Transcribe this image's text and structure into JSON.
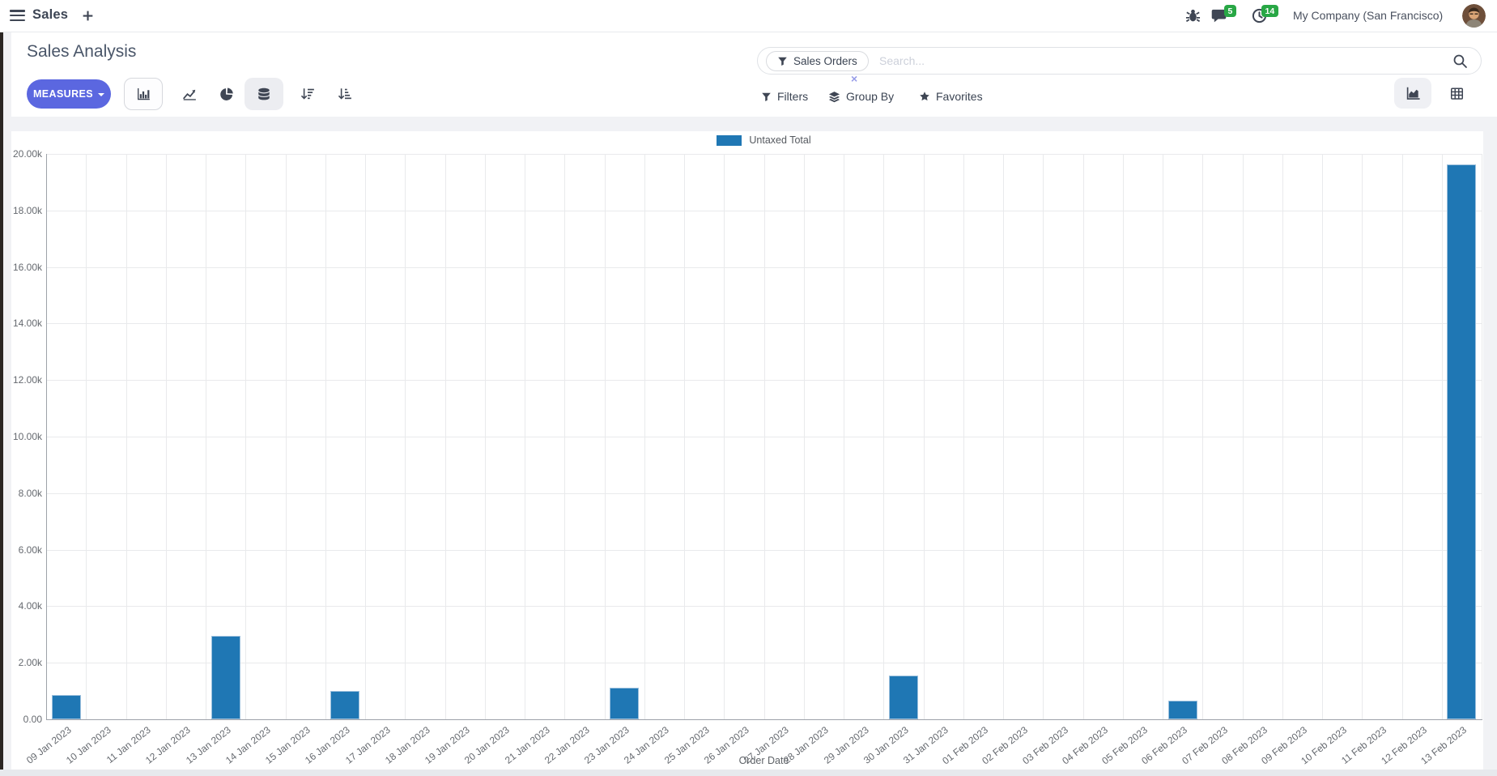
{
  "navbar": {
    "brand": "Sales",
    "messages_badge": "5",
    "activities_badge": "14",
    "company": "My Company (San Francisco)"
  },
  "control_panel": {
    "title": "Sales Analysis",
    "measures_label": "MEASURES",
    "search": {
      "facet": "Sales Orders",
      "placeholder": "Search..."
    },
    "filters_label": "Filters",
    "group_by_label": "Group By",
    "favorites_label": "Favorites"
  },
  "icons": [
    "menu-icon",
    "plus-icon",
    "bug-icon",
    "messages-icon",
    "activities-clock-icon",
    "avatar",
    "bar-chart-icon",
    "line-chart-icon",
    "pie-chart-icon",
    "stacked-icon",
    "sort-descending-icon",
    "sort-ascending-icon",
    "filter-funnel-icon",
    "layers-icon",
    "star-icon",
    "search-icon",
    "remove-facet-x-icon",
    "graph-view-icon",
    "pivot-view-icon"
  ],
  "colors": {
    "accent": "#5b67e0",
    "bar": "#1f77b4",
    "badge": "#28a745",
    "grid": "#e9eaec",
    "axis": "#9da2a9"
  },
  "chart_data": {
    "type": "bar",
    "title": "",
    "xlabel": "Order Date",
    "ylabel": "",
    "ylim": [
      0,
      20000
    ],
    "ytick_step": 2000,
    "ytick_labels": [
      "0.00",
      "2.00k",
      "4.00k",
      "6.00k",
      "8.00k",
      "10.00k",
      "12.00k",
      "14.00k",
      "16.00k",
      "18.00k",
      "20.00k"
    ],
    "grid": true,
    "legend_position": "top",
    "categories": [
      "09 Jan 2023",
      "10 Jan 2023",
      "11 Jan 2023",
      "12 Jan 2023",
      "13 Jan 2023",
      "14 Jan 2023",
      "15 Jan 2023",
      "16 Jan 2023",
      "17 Jan 2023",
      "18 Jan 2023",
      "19 Jan 2023",
      "20 Jan 2023",
      "21 Jan 2023",
      "22 Jan 2023",
      "23 Jan 2023",
      "24 Jan 2023",
      "25 Jan 2023",
      "26 Jan 2023",
      "27 Jan 2023",
      "28 Jan 2023",
      "29 Jan 2023",
      "30 Jan 2023",
      "31 Jan 2023",
      "01 Feb 2023",
      "02 Feb 2023",
      "03 Feb 2023",
      "04 Feb 2023",
      "05 Feb 2023",
      "06 Feb 2023",
      "07 Feb 2023",
      "08 Feb 2023",
      "09 Feb 2023",
      "10 Feb 2023",
      "11 Feb 2023",
      "12 Feb 2023",
      "13 Feb 2023"
    ],
    "series": [
      {
        "name": "Untaxed Total",
        "color": "#1f77b4",
        "values": [
          850,
          0,
          0,
          0,
          2950,
          0,
          0,
          990,
          0,
          0,
          0,
          0,
          0,
          0,
          1130,
          0,
          0,
          0,
          0,
          0,
          0,
          1550,
          0,
          0,
          0,
          0,
          0,
          0,
          670,
          0,
          0,
          0,
          0,
          0,
          0,
          19640
        ]
      }
    ]
  }
}
